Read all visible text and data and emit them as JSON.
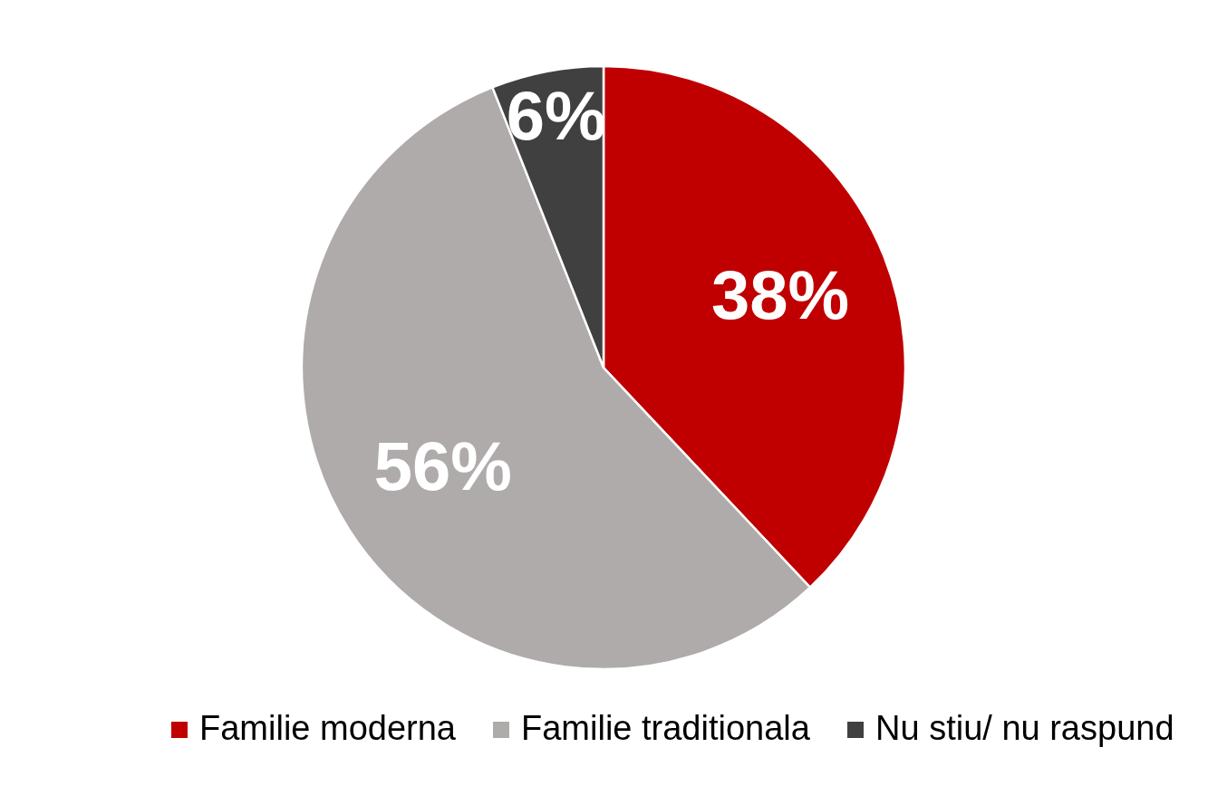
{
  "chart_data": {
    "type": "pie",
    "categories": [
      "Familie moderna",
      "Familie traditionala",
      "Nu stiu/ nu raspund"
    ],
    "values": [
      38,
      56,
      6
    ],
    "colors": [
      "#c00000",
      "#afabab",
      "#404040"
    ],
    "value_labels": [
      "38%",
      "56%",
      "6%"
    ],
    "legend": "bottom"
  }
}
